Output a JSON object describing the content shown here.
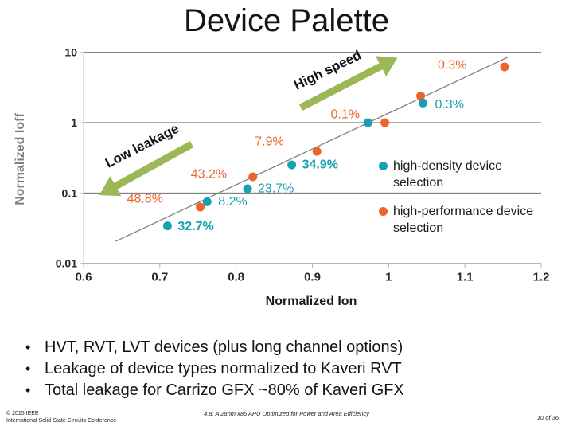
{
  "slide": {
    "title": "Device Palette",
    "bullets": [
      "HVT, RVT, LVT devices (plus long channel options)",
      "Leakage of device types normalized to Kaveri RVT",
      "Total leakage for Carrizo GFX ~80% of Kaveri GFX"
    ],
    "footer": {
      "left1": "© 2015 IEEE",
      "left2": "International Solid-State Circuits Conference",
      "center": "4.8: A 28nm x86 APU Optimized for Power and Area Efficiency",
      "right": "10 of 36"
    }
  },
  "chart_data": {
    "type": "scatter",
    "title": "Device Palette",
    "x_axis": {
      "label": "Normalized Ion",
      "scale": "linear",
      "min": 0.6,
      "max": 1.2,
      "ticks": [
        0.6,
        0.7,
        0.8,
        0.9,
        1,
        1.1,
        1.2
      ],
      "tick_labels": [
        "0.6",
        "0.7",
        "0.8",
        "0.9",
        "1",
        "1.1",
        "1.2"
      ]
    },
    "y_axis": {
      "label": "Normalized Ioff",
      "scale": "log",
      "min": 0.01,
      "max": 10,
      "ticks": [
        10,
        1,
        0.1,
        0.01
      ],
      "tick_labels": [
        "10",
        "1",
        "0.1",
        "0.01"
      ]
    },
    "gridlines_y": [
      10,
      1,
      0.1
    ],
    "series": [
      {
        "name": "high-performance device selection",
        "color": "#EC662B",
        "points": [
          {
            "ion": 0.753,
            "ioff": 0.063,
            "label": "48.8%",
            "bold": false,
            "dx": -92,
            "dy": -10
          },
          {
            "ion": 0.822,
            "ioff": 0.17,
            "label": "43.2%",
            "bold": false,
            "dx": -78,
            "dy": -3
          },
          {
            "ion": 0.906,
            "ioff": 0.39,
            "label": "7.9%",
            "bold": false,
            "dx": -78,
            "dy": -12
          },
          {
            "ion": 0.995,
            "ioff": 1.0,
            "label": "0.1%",
            "bold": false,
            "dx": -68,
            "dy": -10
          },
          {
            "ion": 1.042,
            "ioff": 2.4,
            "label": "",
            "bold": false,
            "dx": 0,
            "dy": 0
          },
          {
            "ion": 1.152,
            "ioff": 6.2,
            "label": "0.3%",
            "bold": false,
            "dx": -84,
            "dy": -2
          }
        ]
      },
      {
        "name": "high-density device selection",
        "color": "#17A0B1",
        "points": [
          {
            "ion": 0.71,
            "ioff": 0.034,
            "label": "32.7%",
            "bold": true,
            "dx": 13,
            "dy": 1
          },
          {
            "ion": 0.762,
            "ioff": 0.075,
            "label": "8.2%",
            "bold": false,
            "dx": 14,
            "dy": 0
          },
          {
            "ion": 0.815,
            "ioff": 0.115,
            "label": "23.7%",
            "bold": false,
            "dx": 13,
            "dy": 0
          },
          {
            "ion": 0.873,
            "ioff": 0.25,
            "label": "34.9%",
            "bold": true,
            "dx": 13,
            "dy": 0
          },
          {
            "ion": 0.973,
            "ioff": 1.0,
            "label": "",
            "bold": false,
            "dx": 0,
            "dy": 0
          },
          {
            "ion": 1.045,
            "ioff": 1.9,
            "label": "0.3%",
            "bold": false,
            "dx": 15,
            "dy": 2
          }
        ]
      }
    ],
    "trendline": {
      "x1": 0.642,
      "y1": 0.0205,
      "x2": 1.156,
      "y2": 8.5,
      "color": "#808080"
    },
    "annotations": [
      {
        "text": "High speed"
      },
      {
        "text": "Low leakage"
      }
    ],
    "arrow_color": "#9BB857",
    "legend": [
      {
        "line1": "high-density device",
        "line2": "selection",
        "color": "#17A0B1"
      },
      {
        "line1": "high-performance device",
        "line2": "selection",
        "color": "#EC662B"
      }
    ]
  }
}
